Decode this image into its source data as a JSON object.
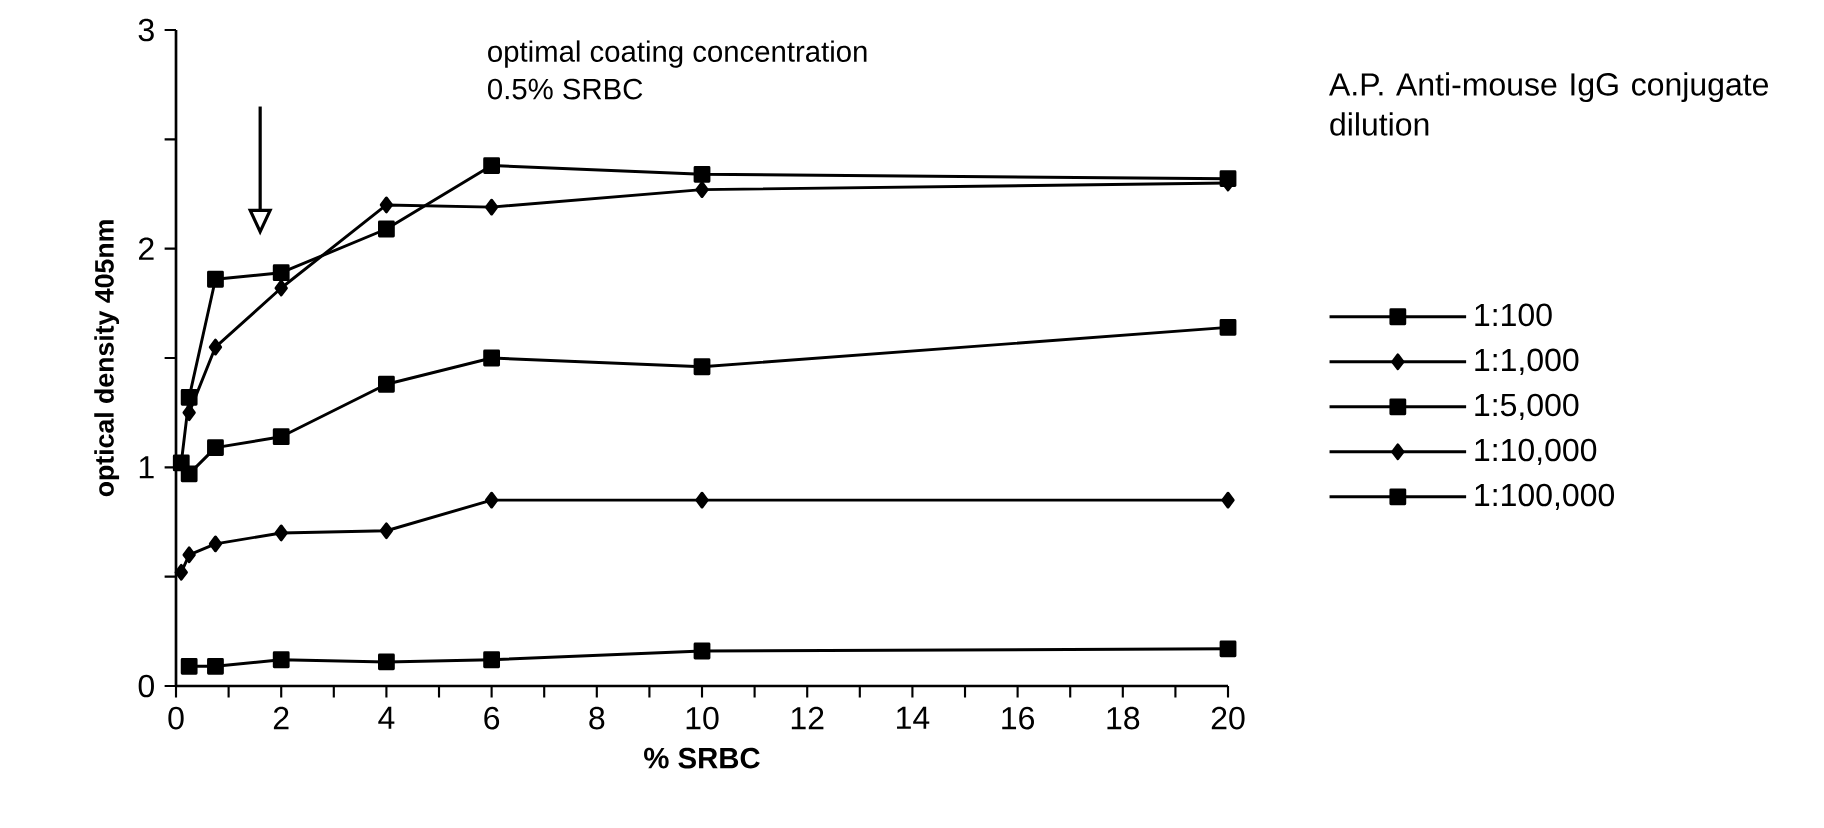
{
  "chart_data": {
    "type": "line",
    "xlabel": "% SRBC",
    "ylabel": "optical density 405nm",
    "legend_title": "A.P. Anti-mouse IgG conjugate dilution",
    "legend": "right",
    "annotations": [
      "optimal coating concentration",
      "0.5% SRBC"
    ],
    "xlim": [
      0,
      20
    ],
    "ylim": [
      0,
      3
    ],
    "xticks": [
      0,
      {
        "value": 1,
        "label": null
      },
      2,
      {
        "value": 3,
        "label": null
      },
      4,
      {
        "value": 5,
        "label": null
      },
      6,
      {
        "value": 7,
        "label": null
      },
      8,
      {
        "value": 9,
        "label": null
      },
      10,
      {
        "value": 11,
        "label": null
      },
      12,
      {
        "value": 13,
        "label": null
      },
      14,
      {
        "value": 15,
        "label": null
      },
      16,
      {
        "value": 17,
        "label": null
      },
      18,
      {
        "value": 19,
        "label": null
      },
      20
    ],
    "yticks": [
      0,
      {
        "value": 0.5,
        "label": null
      },
      1,
      {
        "value": 1.5,
        "label": null
      },
      2,
      {
        "value": 2.5,
        "label": null
      },
      3
    ],
    "series": [
      {
        "name": "1:100",
        "color": "#000000",
        "marker": "square",
        "x": [
          0.1,
          0.25,
          0.75,
          2,
          4,
          6,
          10,
          20
        ],
        "values": [
          1.02,
          1.32,
          1.86,
          1.89,
          2.09,
          2.38,
          2.34,
          2.32
        ]
      },
      {
        "name": "1:1,000",
        "color": "#000000",
        "marker": "diamond",
        "x": [
          0.25,
          0.75,
          2,
          4,
          6,
          10,
          20
        ],
        "values": [
          1.25,
          1.55,
          1.82,
          2.2,
          2.19,
          2.27,
          2.3
        ]
      },
      {
        "name": "1:5,000",
        "color": "#000000",
        "marker": "square",
        "x": [
          0.25,
          0.75,
          2,
          4,
          6,
          10,
          20
        ],
        "values": [
          0.97,
          1.09,
          1.14,
          1.38,
          1.5,
          1.46,
          1.64
        ]
      },
      {
        "name": "1:10,000",
        "color": "#000000",
        "marker": "diamond",
        "x": [
          0.1,
          0.25,
          0.75,
          2,
          4,
          6,
          10,
          20
        ],
        "values": [
          0.52,
          0.6,
          0.65,
          0.7,
          0.71,
          0.85,
          0.85,
          0.85
        ]
      },
      {
        "name": "1:100,000",
        "color": "#000000",
        "marker": "square",
        "x": [
          0.25,
          0.75,
          2,
          4,
          6,
          10,
          20
        ],
        "values": [
          0.09,
          0.09,
          0.12,
          0.11,
          0.12,
          0.16,
          0.17
        ]
      }
    ]
  }
}
